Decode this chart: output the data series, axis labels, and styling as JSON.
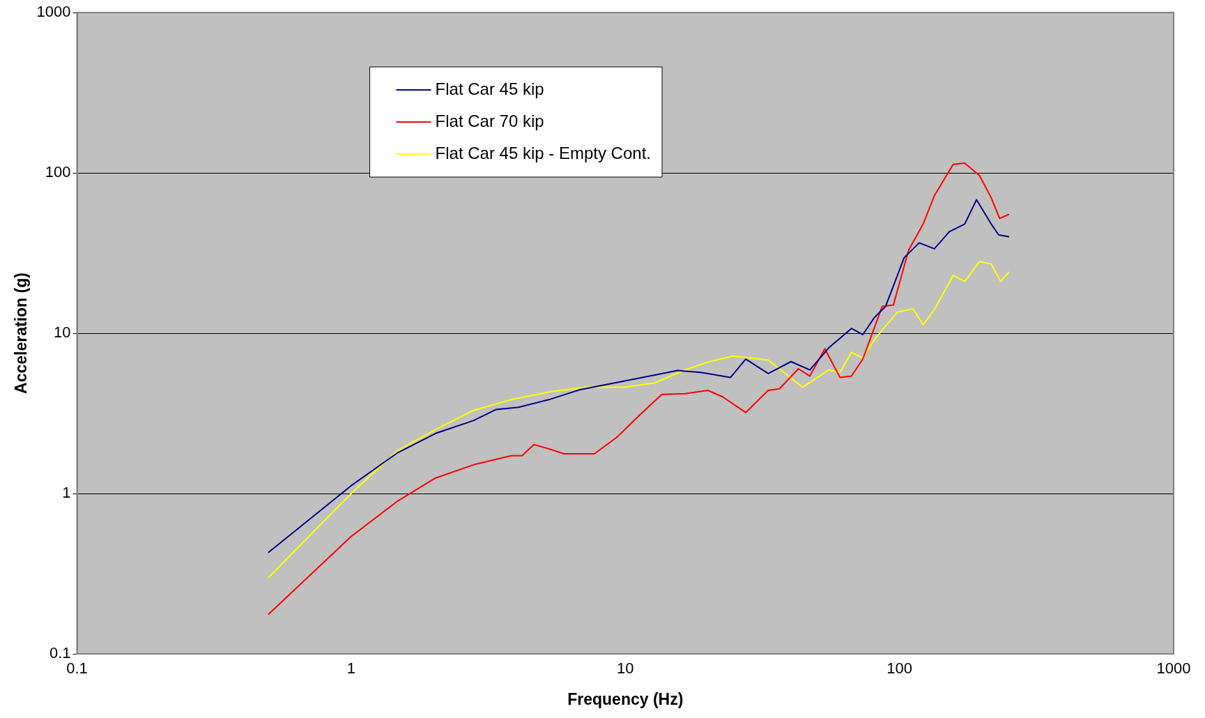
{
  "chart_data": {
    "type": "line",
    "xlabel": "Frequency (Hz)",
    "ylabel": "Acceleration (g)",
    "log": "xy",
    "xlim": [
      0.1,
      1000
    ],
    "xticks": [
      0.1,
      1,
      10,
      100,
      1000
    ],
    "ylim": [
      0.1,
      1000
    ],
    "yticks": [
      0.1,
      1,
      10,
      100,
      1000
    ],
    "grid": "y",
    "legend": "top left",
    "marker": "none",
    "line_style": "solid",
    "series": [
      {
        "name": "Flat Car 45 kip",
        "color": "#000080",
        "x": [
          0.5,
          1,
          1.48,
          2.03,
          2.79,
          3.37,
          4.08,
          5.26,
          6.79,
          9.94,
          12.8,
          15.5,
          18.8,
          24.2,
          27.5,
          33.2,
          40.2,
          47.1,
          55.2,
          66.8,
          73.5,
          80.9,
          89,
          104,
          118,
          134,
          152,
          173,
          191,
          216,
          230,
          250
        ],
        "values": [
          0.43,
          1.12,
          1.8,
          2.37,
          2.85,
          3.34,
          3.45,
          3.85,
          4.43,
          5.04,
          5.49,
          5.85,
          5.7,
          5.3,
          6.9,
          5.6,
          6.65,
          5.9,
          8.1,
          10.7,
          9.8,
          12.5,
          14.7,
          29.6,
          36.6,
          33.6,
          43,
          48,
          68,
          48,
          41,
          40
        ]
      },
      {
        "name": "Flat Car 70 kip",
        "color": "#ff0000",
        "x": [
          0.5,
          1,
          1.48,
          2.03,
          2.79,
          3.83,
          4.2,
          4.64,
          5.26,
          5.98,
          7.71,
          9.33,
          11.3,
          13.6,
          16.5,
          20,
          22.7,
          27.5,
          33.2,
          36.5,
          42.8,
          47.1,
          53.4,
          60.7,
          66.8,
          73.5,
          86.5,
          95,
          108,
          122,
          134,
          157,
          173,
          196,
          216,
          232,
          250
        ],
        "values": [
          0.177,
          0.54,
          0.9,
          1.25,
          1.51,
          1.72,
          1.72,
          2.02,
          1.9,
          1.77,
          1.77,
          2.25,
          3.1,
          4.15,
          4.2,
          4.4,
          4.0,
          3.2,
          4.4,
          4.5,
          6.0,
          5.4,
          8.0,
          5.3,
          5.4,
          6.9,
          14.7,
          15,
          33,
          48,
          72,
          113,
          115,
          96,
          70,
          52,
          55
        ]
      },
      {
        "name": "Flat Car 45 kip - Empty Cont.",
        "color": "#ffff00",
        "x": [
          0.5,
          1,
          1.48,
          2.03,
          2.79,
          3.83,
          5.26,
          7.2,
          9.94,
          12.8,
          16.5,
          20,
          24.7,
          33.2,
          44.3,
          55.2,
          60.7,
          66.8,
          73.5,
          80.9,
          98,
          112,
          122,
          134,
          157,
          173,
          196,
          216,
          234,
          250
        ],
        "values": [
          0.3,
          1.0,
          1.86,
          2.5,
          3.3,
          3.85,
          4.3,
          4.6,
          4.6,
          4.9,
          5.9,
          6.6,
          7.2,
          6.8,
          4.6,
          5.9,
          5.7,
          7.6,
          7.0,
          9.1,
          13.5,
          14.2,
          11.3,
          14.0,
          23,
          21,
          28,
          27,
          21,
          24
        ]
      }
    ]
  }
}
